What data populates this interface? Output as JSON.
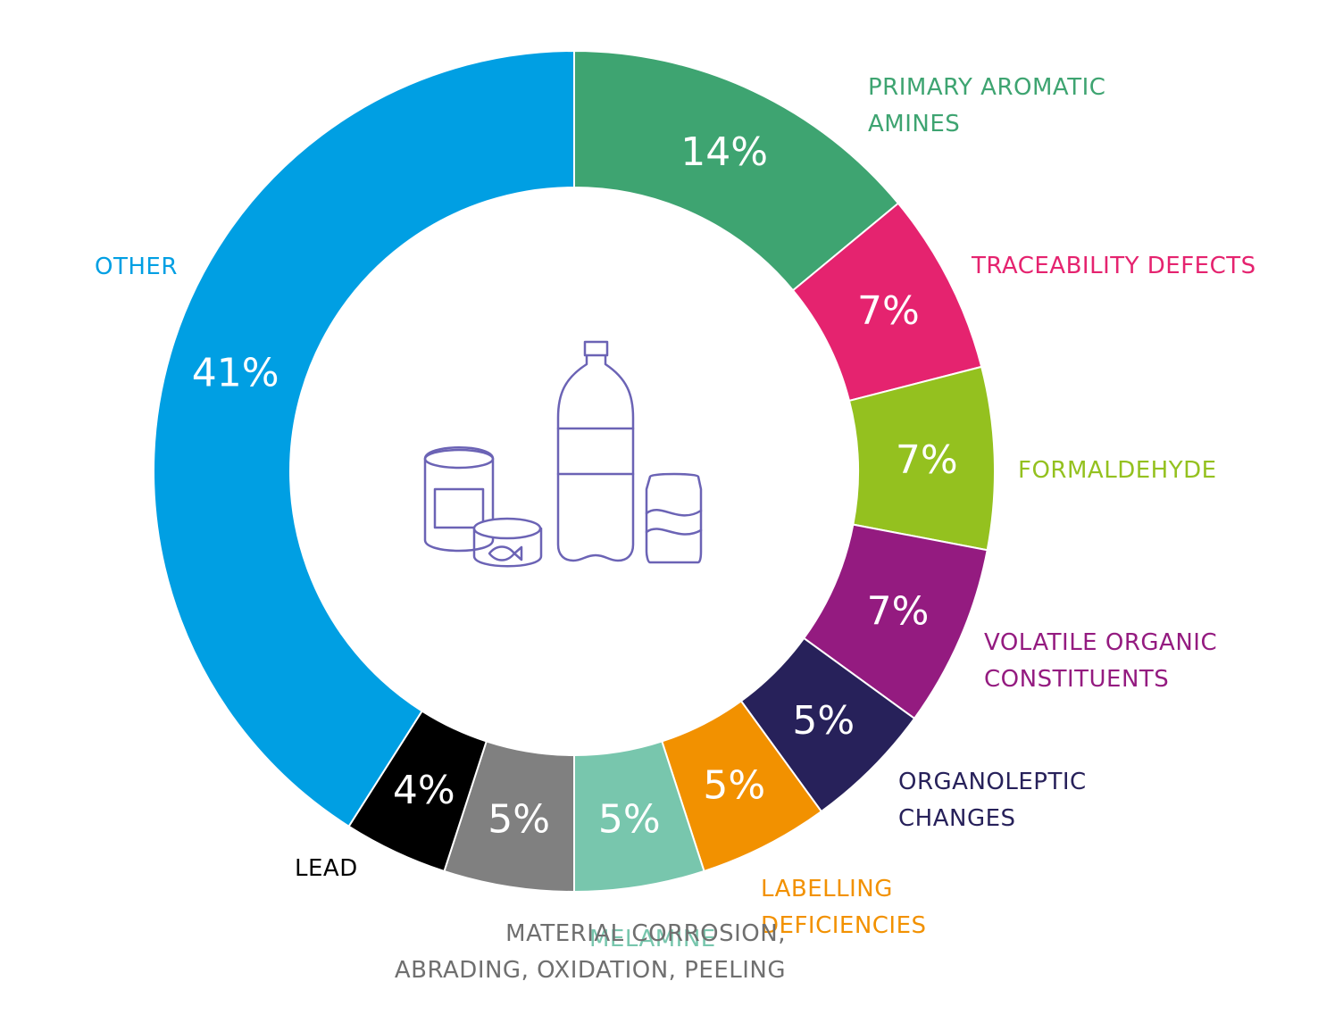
{
  "chart_data": {
    "type": "pie",
    "hole": "donut",
    "center_icon": "food-packaging-icon",
    "slices": [
      {
        "label": "PRIMARY AROMATIC\nAMINES",
        "value": 14,
        "display": "14%",
        "color": "#3ea471"
      },
      {
        "label": "TRACEABILITY DEFECTS",
        "value": 7,
        "display": "7%",
        "color": "#e5236f"
      },
      {
        "label": "FORMALDEHYDE",
        "value": 7,
        "display": "7%",
        "color": "#94c11f"
      },
      {
        "label": "VOLATILE ORGANIC\nCONSTITUENTS",
        "value": 7,
        "display": "7%",
        "color": "#941b80"
      },
      {
        "label": "ORGANOLEPTIC\nCHANGES",
        "value": 5,
        "display": "5%",
        "color": "#27215a"
      },
      {
        "label": "LABELLING\nDEFICIENCIES",
        "value": 5,
        "display": "5%",
        "color": "#f29100"
      },
      {
        "label": "MELAMINE",
        "value": 5,
        "display": "5%",
        "color": "#78c6ad"
      },
      {
        "label": "MATERIAL CORROSION,\nABRADING, OXIDATION, PEELING",
        "value": 5,
        "display": "5%",
        "color": "#808080"
      },
      {
        "label": "LEAD",
        "value": 4,
        "display": "4%",
        "color": "#000000"
      },
      {
        "label": "OTHER",
        "value": 41,
        "display": "41%",
        "color": "#009fe3"
      }
    ],
    "label_colors": {
      "MATERIAL CORROSION,\nABRADING, OXIDATION, PEELING": "#6f6f6f"
    }
  }
}
